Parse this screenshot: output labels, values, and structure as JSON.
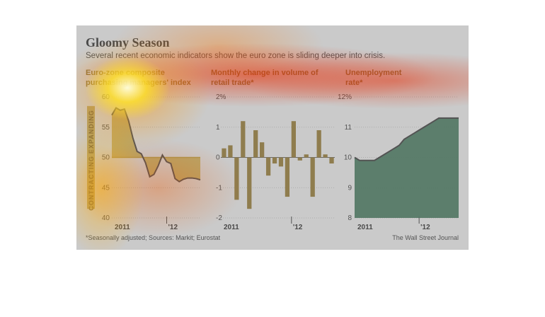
{
  "figure": {
    "title": "Gloomy Season",
    "subtitle": "Several recent economic indicators show the euro zone is sliding deeper into crisis.",
    "footnote": "*Seasonally adjusted; Sources: Markit; Eurostat",
    "credit": "The Wall Street Journal"
  },
  "colors": {
    "gold": "#c9a227",
    "gold_fill": "#d9b43a",
    "brown_bar": "#9a7a2a",
    "green_fill": "#2e6e4c",
    "line": "#333333",
    "band_label": "#7a5a10"
  },
  "chart_data": [
    {
      "type": "area",
      "title_lines": [
        "Euro-zone composite",
        "purchasing managers' index"
      ],
      "band_labels": {
        "upper": "EXPANDING",
        "lower": "CONTRACTING"
      },
      "baseline": 50,
      "ylim": [
        40,
        60
      ],
      "yticks": [
        "40",
        "45",
        "50",
        "55",
        "60"
      ],
      "xlabels": [
        "2011",
        "'12"
      ],
      "x": [
        0,
        1,
        2,
        3,
        4,
        5,
        6,
        7,
        8,
        9,
        10,
        11,
        12,
        13,
        14,
        15,
        16,
        17,
        18,
        19,
        20,
        21
      ],
      "values": [
        57.0,
        58.2,
        57.8,
        58.0,
        56.0,
        53.2,
        51.0,
        50.6,
        49.1,
        46.8,
        47.2,
        48.6,
        50.4,
        49.3,
        49.0,
        46.5,
        46.0,
        46.4,
        46.6,
        46.6,
        46.5,
        46.3
      ]
    },
    {
      "type": "bar",
      "title_lines": [
        "Monthly change in volume of",
        "retail trade*"
      ],
      "ylim": [
        -2,
        2
      ],
      "yticks": [
        "-2",
        "-1",
        "0",
        "1",
        "2%"
      ],
      "xlabels": [
        "2011",
        "'12"
      ],
      "values": [
        0.3,
        0.4,
        -1.4,
        1.2,
        -1.7,
        0.9,
        0.5,
        -0.6,
        -0.2,
        -0.3,
        -1.3,
        1.2,
        -0.1,
        0.1,
        -1.3,
        0.9,
        0.1,
        -0.2
      ]
    },
    {
      "type": "area",
      "title_lines": [
        "Unemployment",
        "rate*"
      ],
      "ylim": [
        8,
        12
      ],
      "yticks": [
        "8",
        "9",
        "10",
        "11",
        "12%"
      ],
      "xlabels": [
        "2011",
        "'12"
      ],
      "x": [
        0,
        1,
        2,
        3,
        4,
        5,
        6,
        7,
        8,
        9,
        10,
        11,
        12,
        13,
        14,
        15,
        16,
        17,
        18,
        19,
        20,
        21
      ],
      "values": [
        10.0,
        9.9,
        9.9,
        9.9,
        9.9,
        10.0,
        10.1,
        10.2,
        10.3,
        10.4,
        10.6,
        10.7,
        10.8,
        10.9,
        11.0,
        11.1,
        11.2,
        11.3,
        11.3,
        11.3,
        11.3,
        11.3
      ]
    }
  ]
}
